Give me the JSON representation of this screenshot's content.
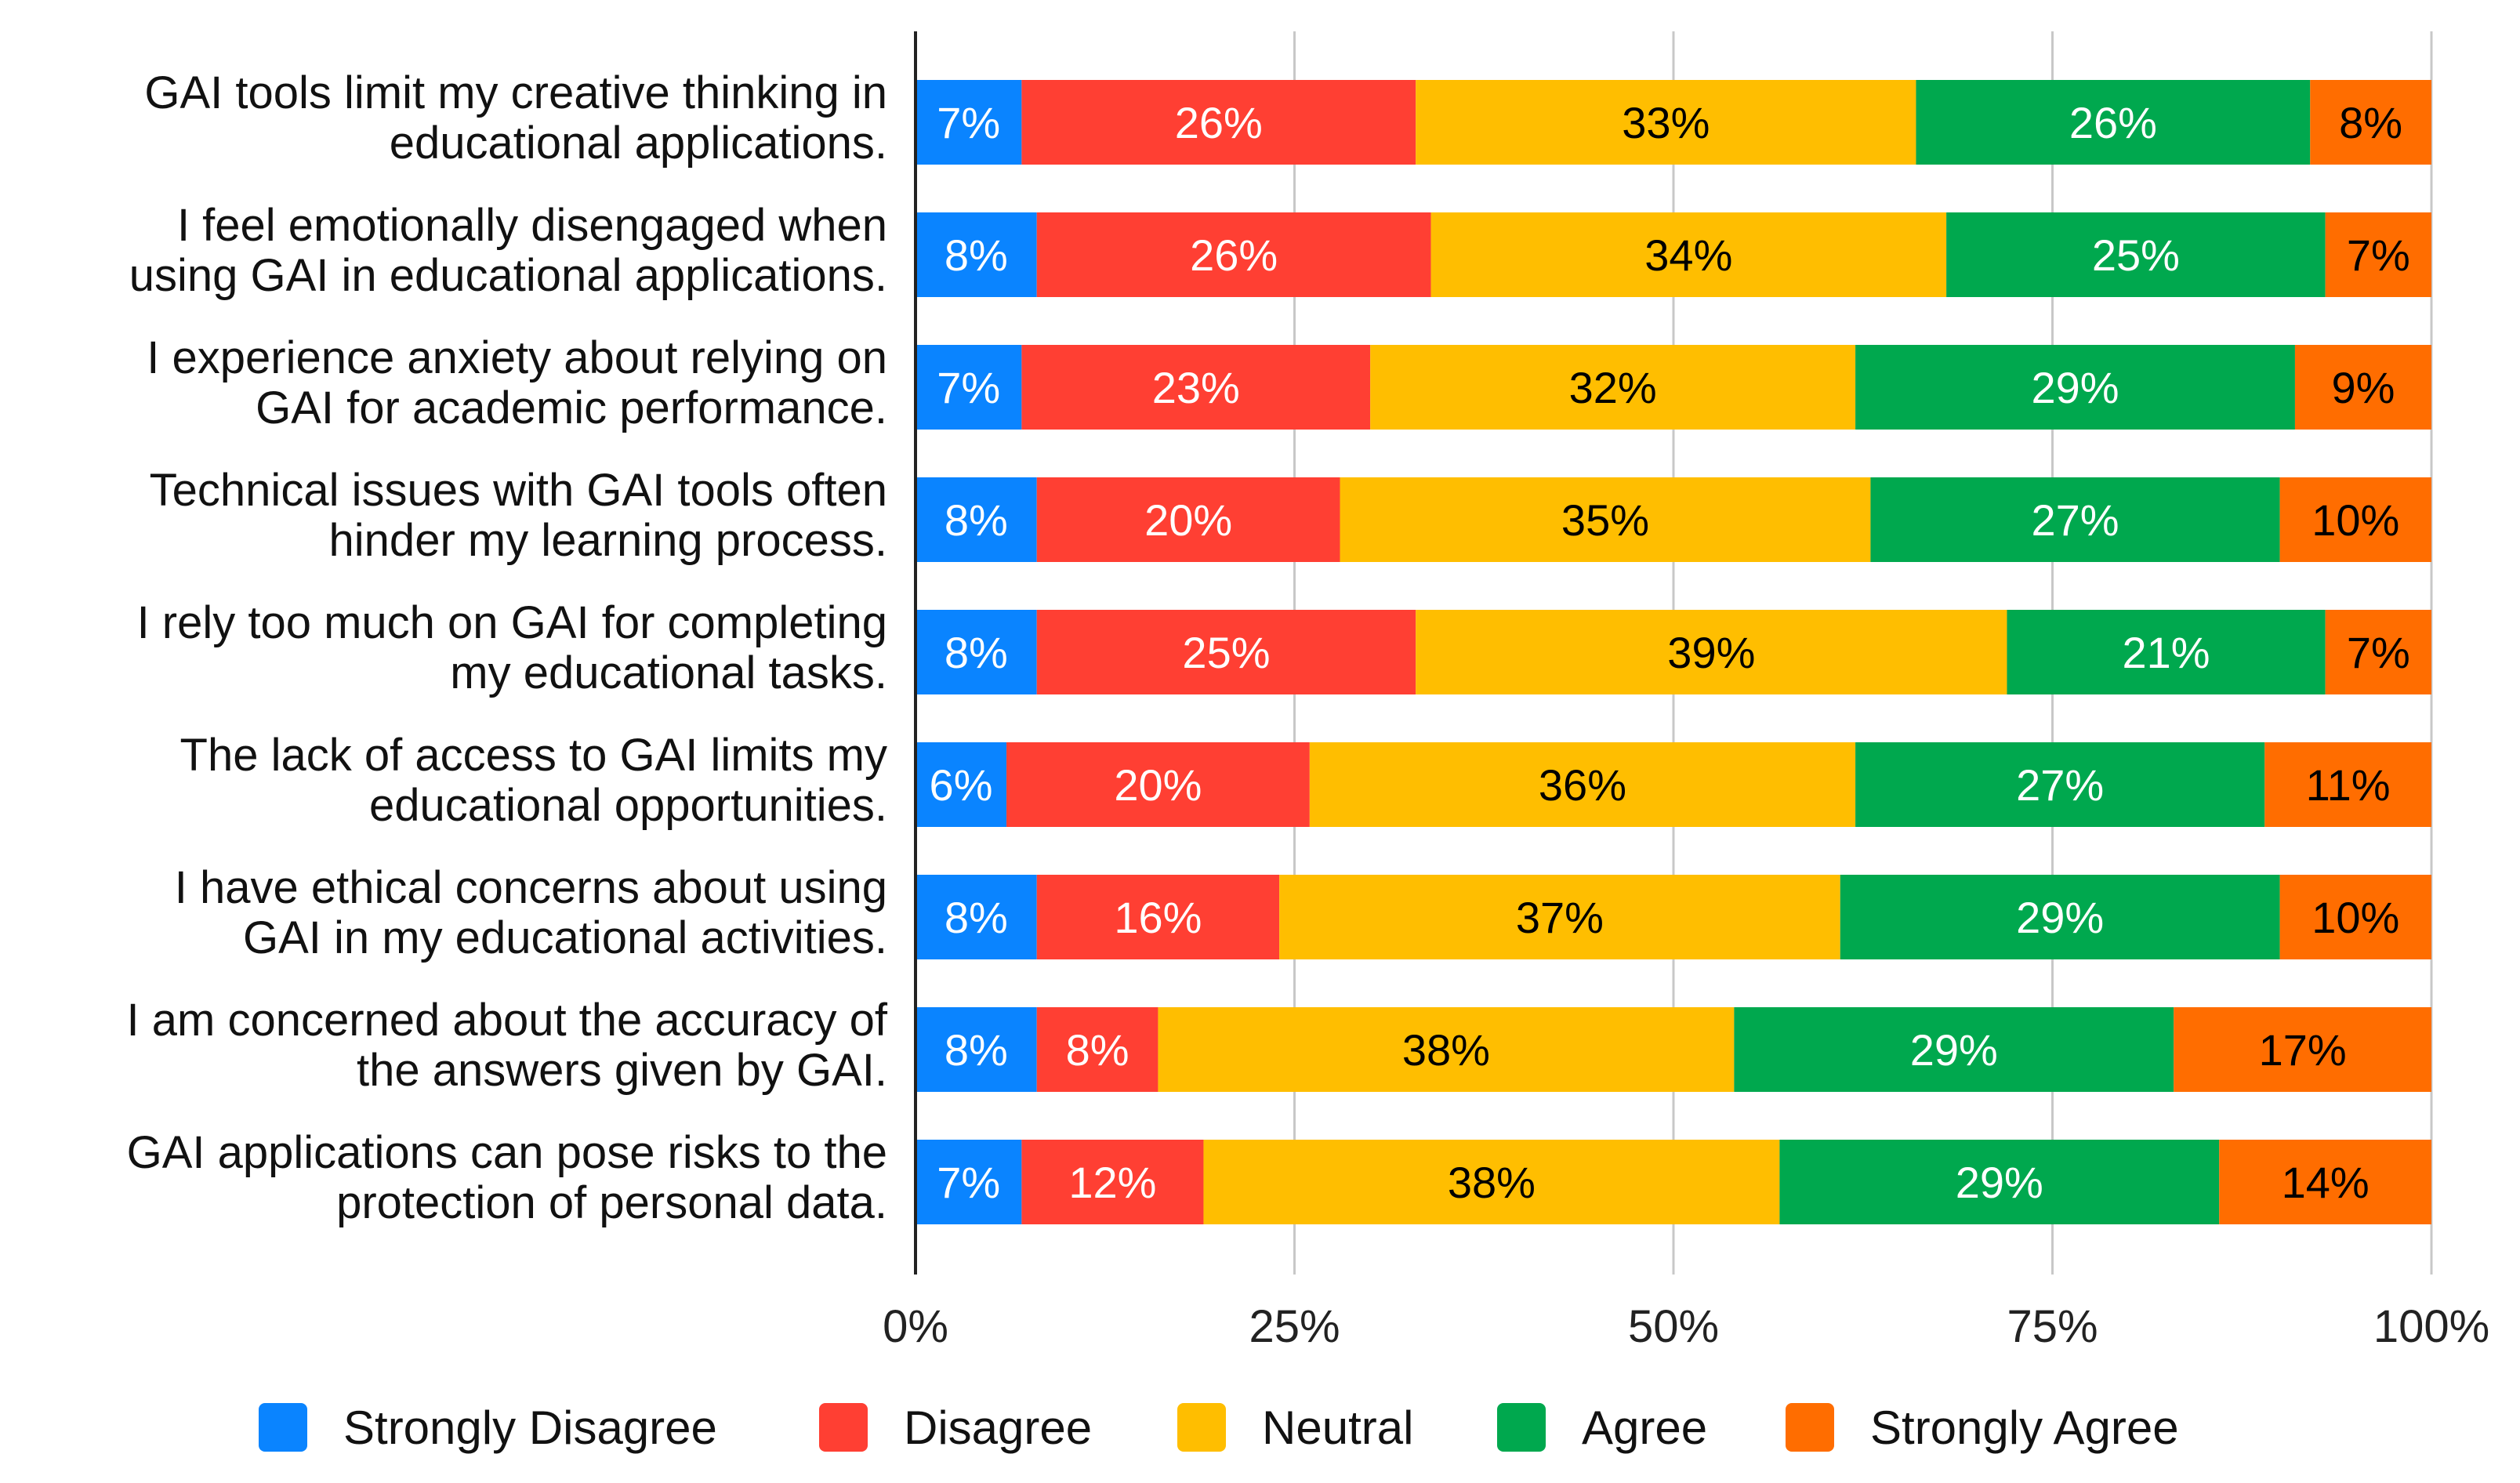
{
  "chart_data": {
    "type": "bar",
    "orientation": "horizontal",
    "stacked": "percent",
    "title": "",
    "xlabel": "",
    "ylabel": "",
    "xlim": [
      0,
      100
    ],
    "grid": true,
    "legend_position": "bottom",
    "x_ticks": [
      "0%",
      "25%",
      "50%",
      "75%",
      "100%"
    ],
    "categories": [
      [
        "GAI tools limit my creative thinking in",
        "educational applications."
      ],
      [
        "I feel emotionally disengaged when",
        "using GAI in educational applications."
      ],
      [
        "I experience anxiety about relying on",
        "GAI for academic performance."
      ],
      [
        "Technical issues with GAI tools often",
        "hinder my learning process."
      ],
      [
        "I rely too much on GAI for completing",
        "my educational tasks."
      ],
      [
        "The lack of access to GAI limits my",
        "educational opportunities."
      ],
      [
        "I have ethical concerns about using",
        "GAI in my educational activities."
      ],
      [
        "I am concerned about the accuracy of",
        "the answers given by GAI."
      ],
      [
        "GAI applications can pose risks to the",
        "protection of personal data."
      ]
    ],
    "series": [
      {
        "name": "Strongly Disagree",
        "color": "#0A84FF",
        "label_color": "#ffffff",
        "values": [
          7,
          8,
          7,
          8,
          8,
          6,
          8,
          8,
          7
        ]
      },
      {
        "name": "Disagree",
        "color": "#FF3F33",
        "label_color": "#ffffff",
        "values": [
          26,
          26,
          23,
          20,
          25,
          20,
          16,
          8,
          12
        ]
      },
      {
        "name": "Neutral",
        "color": "#FFBE00",
        "label_color": "#000000",
        "values": [
          33,
          34,
          32,
          35,
          39,
          36,
          37,
          38,
          38
        ]
      },
      {
        "name": "Agree",
        "color": "#00A84E",
        "label_color": "#ffffff",
        "values": [
          26,
          25,
          29,
          27,
          21,
          27,
          29,
          29,
          29
        ]
      },
      {
        "name": "Strongly Agree",
        "color": "#FF6D00",
        "label_color": "#000000",
        "values": [
          8,
          7,
          9,
          10,
          7,
          11,
          10,
          17,
          14
        ]
      }
    ]
  }
}
